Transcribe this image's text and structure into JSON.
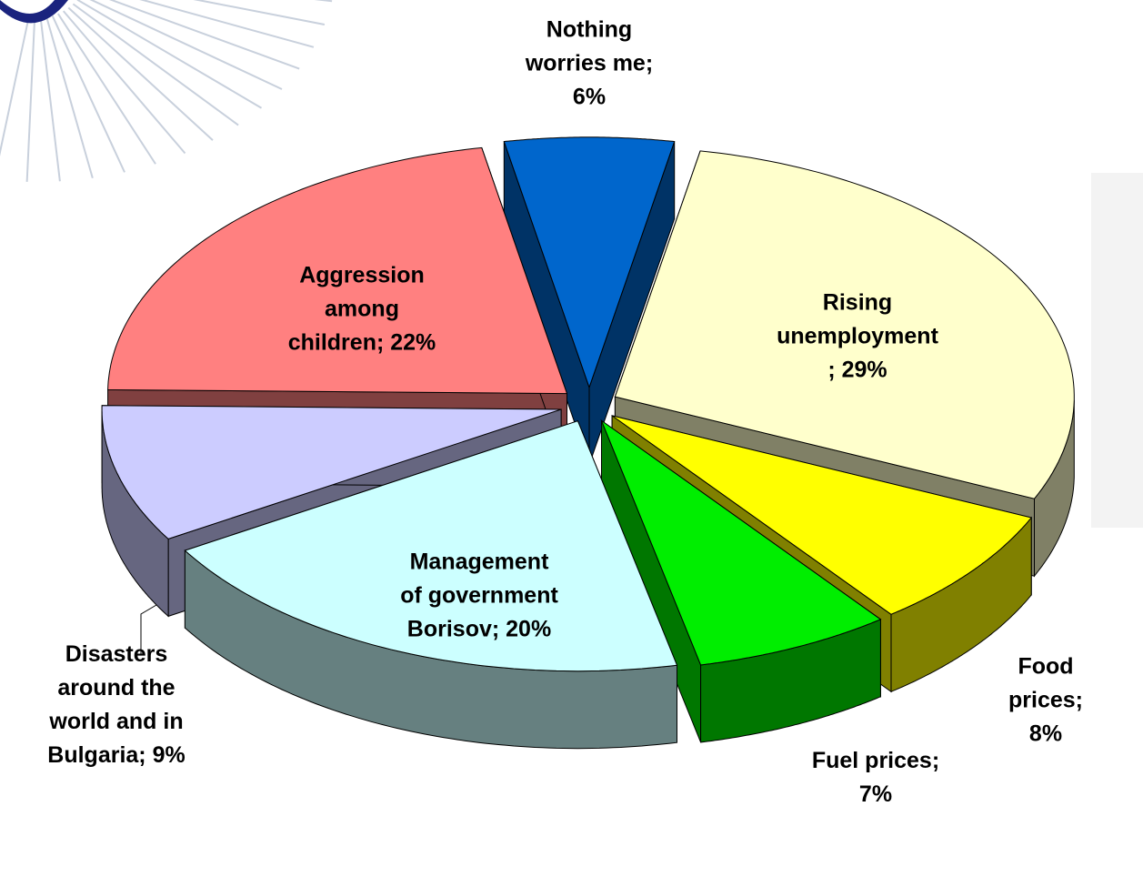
{
  "chart_data": {
    "type": "pie3d",
    "values": [
      6,
      29,
      8,
      7,
      20,
      9,
      22
    ],
    "value_labels": [
      "Nothing\nworries me;\n6%",
      "Rising\nunemployment\n; 29%",
      "Food prices;\n8%",
      "Fuel prices;\n7%",
      "Management\nof government\nBorisov; 20%",
      "Disasters\naround the\nworld and in\nBulgaria; 9%",
      "Aggression\namong\nchildren; 22%"
    ],
    "colors": [
      "#0066cc",
      "#ffffcc",
      "#ffff00",
      "#00ee00",
      "#ccffff",
      "#ccccff",
      "#ff8080"
    ]
  }
}
